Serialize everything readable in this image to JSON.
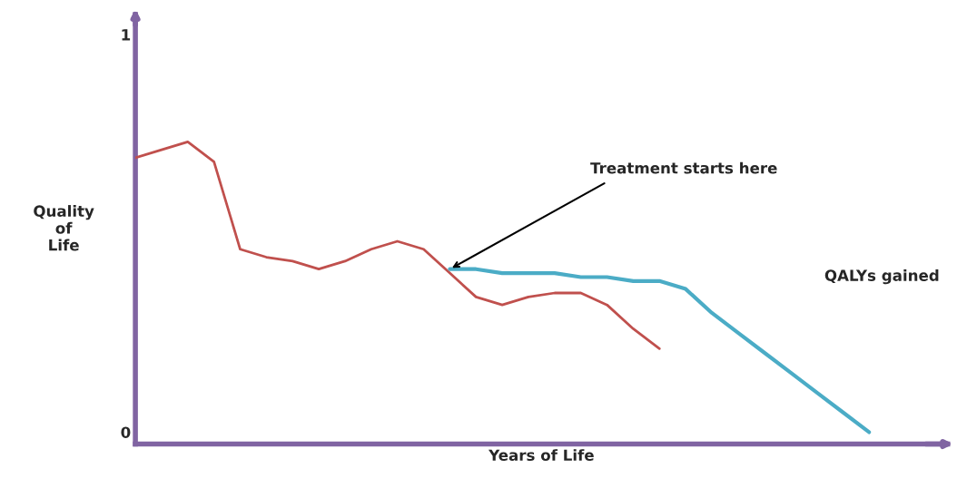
{
  "chart_data": {
    "type": "line",
    "xlabel": "Years of Life",
    "ylabel": "Quality\nof\nLife",
    "categories": [
      null,
      null,
      null,
      null,
      null,
      null,
      null,
      null,
      null,
      null,
      null,
      null,
      null,
      null,
      null,
      null,
      null,
      null,
      null,
      null,
      null,
      null,
      null,
      null,
      null,
      null,
      null,
      null,
      null,
      null,
      null,
      null
    ],
    "ylim": [
      -0.03,
      1.05
    ],
    "yticks": [
      0,
      1
    ],
    "tick_labels": "y",
    "grid": false,
    "legend": false,
    "marker": "none",
    "line_style": "solid",
    "series": [
      {
        "color": "#c0504d",
        "values": [
          0.69,
          0.71,
          0.73,
          0.68,
          0.46,
          0.44,
          0.43,
          0.41,
          0.43,
          0.46,
          0.48,
          0.46,
          0.4,
          0.34,
          0.32,
          0.34,
          0.35,
          0.35,
          0.32,
          0.26,
          0.21,
          null,
          null,
          null,
          null,
          null,
          null,
          null,
          null,
          null,
          null,
          null
        ]
      },
      {
        "color": "#4bacc6",
        "values": [
          null,
          null,
          null,
          null,
          null,
          null,
          null,
          null,
          null,
          null,
          null,
          null,
          0.41,
          0.41,
          0.4,
          0.4,
          0.4,
          0.39,
          0.39,
          0.38,
          0.38,
          0.36,
          0.3,
          0.25,
          0.2,
          0.15,
          0.1,
          0.05,
          0.0,
          null,
          null,
          null
        ]
      }
    ],
    "annotations": [
      "Treatment starts here",
      "QALYs gained"
    ]
  }
}
